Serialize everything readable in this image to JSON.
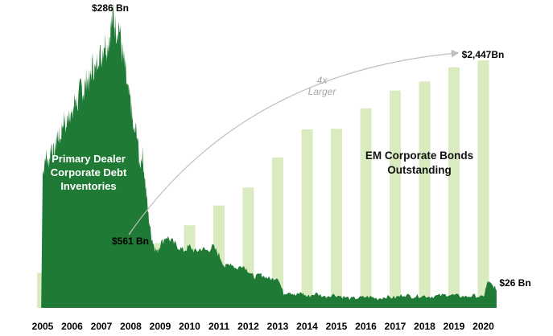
{
  "chart_data": {
    "type": "bar",
    "title": "",
    "xlabel": "",
    "ylabel": "",
    "categories": [
      "2005",
      "2006",
      "2007",
      "2008",
      "2009",
      "2010",
      "2011",
      "2012",
      "2013",
      "2014",
      "2015",
      "2016",
      "2017",
      "2018",
      "2019",
      "2020"
    ],
    "series": [
      {
        "name": "EM Corporate Bonds Outstanding",
        "unit": "$ Bn",
        "kind": "bar",
        "color": "#d9ebbf",
        "values": [
          346,
          458,
          561,
          584,
          641,
          817,
          1012,
          1190,
          1487,
          1764,
          1770,
          1972,
          2148,
          2239,
          2378,
          2447
        ]
      },
      {
        "name": "Primary Dealer Corporate Debt Inventories",
        "unit": "$ Bn",
        "kind": "area",
        "color": "#1f7a35",
        "points": [
          [
            2005.0,
            130
          ],
          [
            2005.1,
            150
          ],
          [
            2005.2,
            140
          ],
          [
            2005.3,
            160
          ],
          [
            2005.4,
            150
          ],
          [
            2005.5,
            170
          ],
          [
            2005.6,
            165
          ],
          [
            2005.7,
            185
          ],
          [
            2005.8,
            175
          ],
          [
            2005.9,
            195
          ],
          [
            2006.0,
            185
          ],
          [
            2006.1,
            205
          ],
          [
            2006.2,
            200
          ],
          [
            2006.3,
            218
          ],
          [
            2006.4,
            210
          ],
          [
            2006.5,
            225
          ],
          [
            2006.6,
            220
          ],
          [
            2006.7,
            238
          ],
          [
            2006.8,
            230
          ],
          [
            2006.9,
            250
          ],
          [
            2007.0,
            245
          ],
          [
            2007.1,
            262
          ],
          [
            2007.2,
            255
          ],
          [
            2007.3,
            270
          ],
          [
            2007.4,
            286
          ],
          [
            2007.5,
            272
          ],
          [
            2007.6,
            278
          ],
          [
            2007.7,
            250
          ],
          [
            2007.8,
            235
          ],
          [
            2007.9,
            210
          ],
          [
            2008.0,
            200
          ],
          [
            2008.1,
            170
          ],
          [
            2008.2,
            175
          ],
          [
            2008.3,
            140
          ],
          [
            2008.4,
            150
          ],
          [
            2008.5,
            120
          ],
          [
            2008.6,
            90
          ],
          [
            2008.7,
            70
          ],
          [
            2008.8,
            60
          ],
          [
            2008.9,
            55
          ],
          [
            2009.0,
            62
          ],
          [
            2009.2,
            70
          ],
          [
            2009.4,
            65
          ],
          [
            2009.6,
            60
          ],
          [
            2009.8,
            56
          ],
          [
            2010.0,
            60
          ],
          [
            2010.2,
            55
          ],
          [
            2010.4,
            58
          ],
          [
            2010.6,
            56
          ],
          [
            2010.8,
            60
          ],
          [
            2011.0,
            52
          ],
          [
            2011.2,
            40
          ],
          [
            2011.4,
            44
          ],
          [
            2011.6,
            38
          ],
          [
            2011.8,
            42
          ],
          [
            2012.0,
            36
          ],
          [
            2012.2,
            30
          ],
          [
            2012.4,
            33
          ],
          [
            2012.6,
            30
          ],
          [
            2012.8,
            28
          ],
          [
            2013.0,
            30
          ],
          [
            2013.2,
            14
          ],
          [
            2013.4,
            16
          ],
          [
            2013.6,
            12
          ],
          [
            2013.8,
            15
          ],
          [
            2014.0,
            11
          ],
          [
            2014.3,
            14
          ],
          [
            2014.6,
            11
          ],
          [
            2014.9,
            13
          ],
          [
            2015.2,
            11
          ],
          [
            2015.5,
            9
          ],
          [
            2015.8,
            10
          ],
          [
            2016.1,
            11
          ],
          [
            2016.4,
            9
          ],
          [
            2016.7,
            11
          ],
          [
            2017.0,
            10
          ],
          [
            2017.3,
            13
          ],
          [
            2017.6,
            11
          ],
          [
            2017.9,
            12
          ],
          [
            2018.2,
            11
          ],
          [
            2018.5,
            12
          ],
          [
            2018.8,
            13
          ],
          [
            2019.1,
            12
          ],
          [
            2019.4,
            11
          ],
          [
            2019.7,
            12
          ],
          [
            2020.0,
            10
          ],
          [
            2020.15,
            26
          ],
          [
            2020.3,
            22
          ],
          [
            2020.45,
            18
          ]
        ]
      }
    ],
    "annotations": [
      {
        "text": "$286 Bn",
        "target": "area peak (2007)"
      },
      {
        "text": "$561 Bn",
        "target": "EM bar 2007"
      },
      {
        "text": "$2,447Bn",
        "target": "EM bar 2020"
      },
      {
        "text": "$26 Bn",
        "target": "area end (2020)"
      },
      {
        "text": "4x",
        "target": "arrow"
      },
      {
        "text": "Larger",
        "target": "arrow"
      }
    ],
    "series_labels": {
      "dealer": [
        "Primary Dealer",
        "Corporate Debt",
        "Inventories"
      ],
      "em": [
        "EM Corporate Bonds",
        "Outstanding"
      ]
    },
    "arrow_text": [
      "4x",
      "Larger"
    ]
  }
}
